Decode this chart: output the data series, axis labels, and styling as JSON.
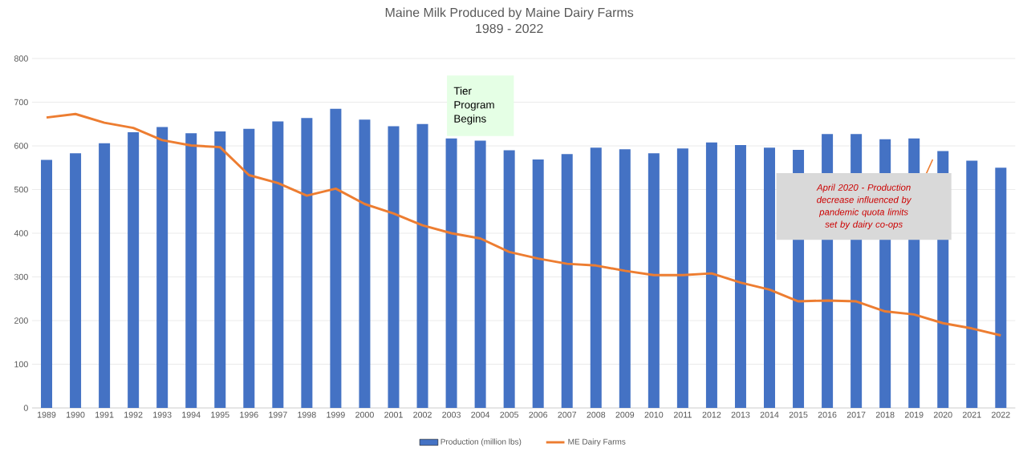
{
  "chart_data": {
    "type": "bar",
    "title": "Maine Milk Produced by Maine Dairy Farms",
    "subtitle": "1989 - 2022",
    "categories": [
      "1989",
      "1990",
      "1991",
      "1992",
      "1993",
      "1994",
      "1995",
      "1996",
      "1997",
      "1998",
      "1999",
      "2000",
      "2001",
      "2002",
      "2003",
      "2004",
      "2005",
      "2006",
      "2007",
      "2008",
      "2009",
      "2010",
      "2011",
      "2012",
      "2013",
      "2014",
      "2015",
      "2016",
      "2017",
      "2018",
      "2019",
      "2020",
      "2021",
      "2022"
    ],
    "series": [
      {
        "name": "Production (million lbs)",
        "color": "#4472c4",
        "values": [
          568,
          583,
          606,
          631,
          643,
          629,
          633,
          639,
          656,
          664,
          685,
          660,
          645,
          650,
          617,
          612,
          590,
          569,
          581,
          596,
          592,
          583,
          594,
          608,
          602,
          596,
          591,
          627,
          627,
          615,
          617,
          588,
          566,
          550
        ]
      },
      {
        "name": "ME Dairy Farms",
        "type": "line",
        "color": "#ed7d31",
        "values": [
          665,
          673,
          653,
          641,
          613,
          601,
          597,
          533,
          515,
          486,
          502,
          467,
          445,
          418,
          400,
          388,
          357,
          342,
          330,
          326,
          314,
          304,
          304,
          308,
          287,
          271,
          244,
          246,
          244,
          221,
          214,
          194,
          182,
          166
        ]
      }
    ],
    "ylim": [
      0,
      800
    ],
    "yticks": [
      0,
      100,
      200,
      300,
      400,
      500,
      600,
      700,
      800
    ],
    "grid": "y",
    "legend": "bottom",
    "marker": "none",
    "annotations": [
      "Tier Program Begins",
      "April 2020 -  Production decrease influenced by pandemic quota limits set by dairy co-ops"
    ]
  }
}
